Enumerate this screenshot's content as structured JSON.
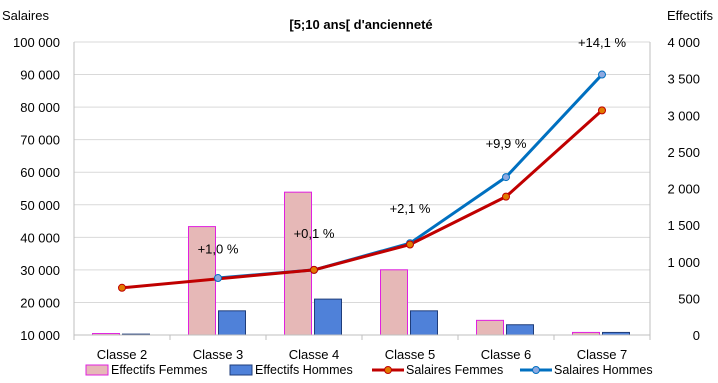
{
  "chart_data": {
    "type": "bar+line",
    "title": "[5;10 ans[ d'ancienneté",
    "ylabel_left": "Salaires",
    "ylabel_right": "Effectifs",
    "categories": [
      "Classe 2",
      "Classe 3",
      "Classe 4",
      "Classe 5",
      "Classe 6",
      "Classe 7"
    ],
    "ylim_left": [
      10000,
      100000
    ],
    "ylim_right": [
      0,
      4000
    ],
    "yticks_left": [
      "10 000",
      "20 000",
      "30 000",
      "40 000",
      "50 000",
      "60 000",
      "70 000",
      "80 000",
      "90 000",
      "100 000"
    ],
    "yticks_right": [
      "0",
      "500",
      "1 000",
      "1 500",
      "2 000",
      "2 500",
      "3 000",
      "3 500",
      "4 000"
    ],
    "bar_series": [
      {
        "name": "Effectifs Femmes",
        "axis": "right",
        "color": "#e6b8b7",
        "border": "#e020e0",
        "values": [
          20,
          1480,
          1950,
          890,
          200,
          35
        ]
      },
      {
        "name": "Effectifs Hommes",
        "axis": "right",
        "color": "#4f81d9",
        "border": "#1f3d7a",
        "values": [
          12,
          330,
          490,
          330,
          140,
          35
        ]
      }
    ],
    "line_series": [
      {
        "name": "Salaires Femmes",
        "axis": "left",
        "color": "#c00000",
        "marker": "#e07b00",
        "values": [
          24500,
          null,
          30000,
          37800,
          52500,
          79000
        ]
      },
      {
        "name": "Salaires Hommes",
        "axis": "left",
        "color": "#0070c0",
        "marker": "#8ea9e0",
        "values": [
          null,
          27500,
          30000,
          38200,
          58500,
          90000
        ]
      }
    ],
    "annotations": [
      {
        "text": "+1,0 %",
        "category": "Classe 3",
        "y": 35000
      },
      {
        "text": "+0,1 %",
        "category": "Classe 4",
        "y": 39800
      },
      {
        "text": "+2,1 %",
        "category": "Classe 5",
        "y": 47500
      },
      {
        "text": "+9,9 %",
        "category": "Classe 6",
        "y": 67500
      },
      {
        "text": "+14,1 %",
        "category": "Classe 7",
        "y": 98500
      }
    ],
    "legend_position": "bottom"
  }
}
